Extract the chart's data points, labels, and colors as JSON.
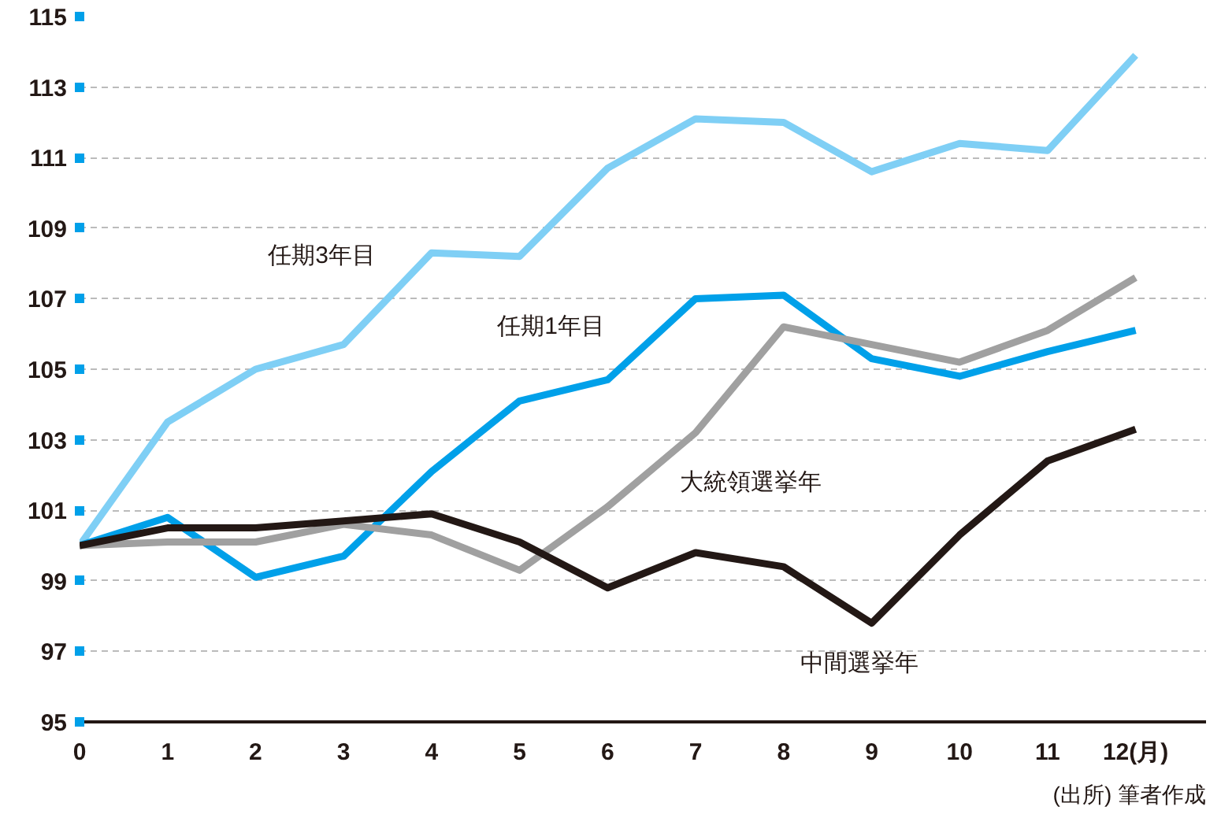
{
  "chart_data": {
    "type": "line",
    "x": [
      0,
      1,
      2,
      3,
      4,
      5,
      6,
      7,
      8,
      9,
      10,
      11,
      12
    ],
    "xlim": [
      0,
      12.8
    ],
    "xticks": [
      0,
      1,
      2,
      3,
      4,
      5,
      6,
      7,
      8,
      9,
      10,
      11,
      {
        "value": 12,
        "label": "12(月)"
      }
    ],
    "ylim": [
      95,
      115
    ],
    "yticks": [
      95,
      97,
      99,
      101,
      103,
      105,
      107,
      109,
      111,
      113,
      115
    ],
    "grid": "y",
    "legend": false,
    "marker": "none",
    "line_style": "solid",
    "annotations": [
      "(出所) 筆者作成"
    ],
    "series": [
      {
        "name": "任期3年目",
        "color": "#7fcff5",
        "values": [
          100,
          103.5,
          105.0,
          105.7,
          108.3,
          108.2,
          110.7,
          112.1,
          112.0,
          110.6,
          111.4,
          111.2,
          113.9
        ]
      },
      {
        "name": "任期1年目",
        "color": "#00a0e9",
        "values": [
          100,
          100.8,
          99.1,
          99.7,
          102.1,
          104.1,
          104.7,
          107.0,
          107.1,
          105.3,
          104.8,
          105.5,
          106.1
        ]
      },
      {
        "name": "大統領選挙年",
        "color": "#a0a0a0",
        "values": [
          100,
          100.1,
          100.1,
          100.6,
          100.3,
          99.3,
          101.1,
          103.2,
          106.2,
          105.7,
          105.2,
          106.1,
          107.6
        ]
      },
      {
        "name": "中間選挙年",
        "color": "#231815",
        "values": [
          100,
          100.5,
          100.5,
          100.7,
          100.9,
          100.1,
          98.8,
          99.8,
          99.4,
          97.8,
          100.3,
          102.4,
          103.3
        ]
      }
    ]
  }
}
